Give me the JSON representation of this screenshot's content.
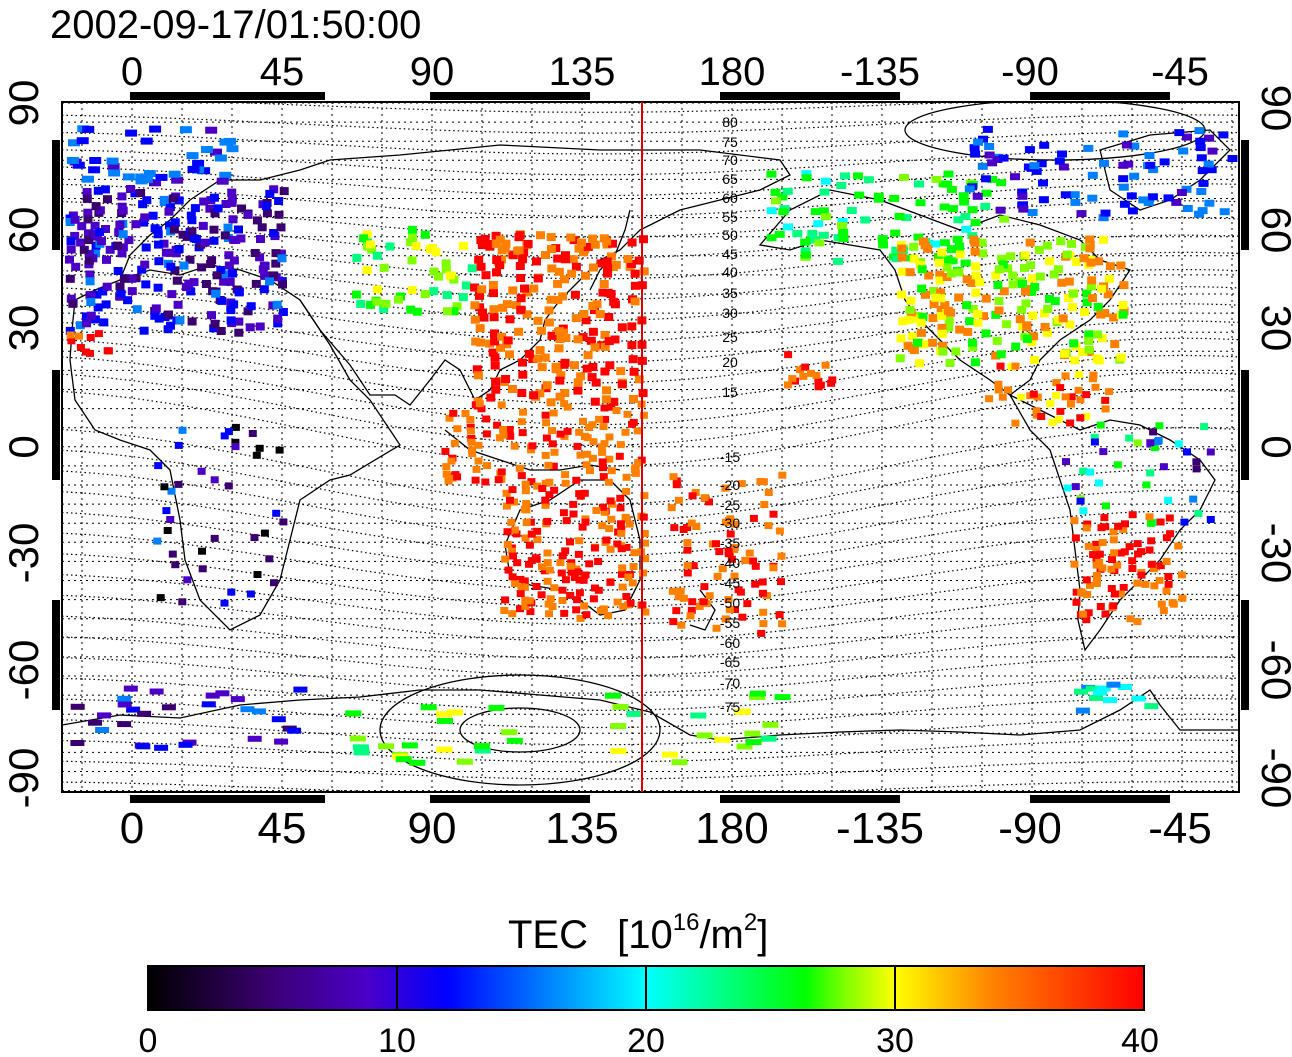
{
  "timestamp": "2002-09-17/01:50:00",
  "lon_ticks_top": [
    "0",
    "45",
    "90",
    "135",
    "180",
    "-135",
    "-90",
    "-45"
  ],
  "lon_ticks_bottom": [
    "0",
    "45",
    "90",
    "135",
    "180",
    "-135",
    "-90",
    "-45"
  ],
  "lat_ticks_left": [
    "90",
    "60",
    "30",
    "0",
    "-30",
    "-60",
    "-90"
  ],
  "lat_ticks_right": [
    "90",
    "60",
    "30",
    "0",
    "-30",
    "-60",
    "-90"
  ],
  "contour_labels": [
    "80",
    "75",
    "70",
    "65",
    "60",
    "55",
    "50",
    "45",
    "40",
    "35",
    "30",
    "25",
    "20",
    "15",
    "-15",
    "-20",
    "-25",
    "-30",
    "-35",
    "-40",
    "-45",
    "-50",
    "-55",
    "-60",
    "-65",
    "-70",
    "-75"
  ],
  "colorbar": {
    "title": "TEC",
    "unit_open": "[10",
    "unit_exp": "16",
    "unit_mid": "/m",
    "unit_exp2": "2",
    "unit_close": "]",
    "tick_labels": [
      "0",
      "10",
      "20",
      "30",
      "40"
    ],
    "range": [
      0,
      40
    ]
  },
  "colors": {
    "meridian_marker": "#e00000",
    "colormap": [
      "#000000",
      "#3a0070",
      "#4b00c8",
      "#0000ff",
      "#0080ff",
      "#00ffff",
      "#00ff80",
      "#00ff00",
      "#80ff00",
      "#ffff00",
      "#ff8000",
      "#ff0000"
    ]
  },
  "meridian_marker_lon": 153
}
